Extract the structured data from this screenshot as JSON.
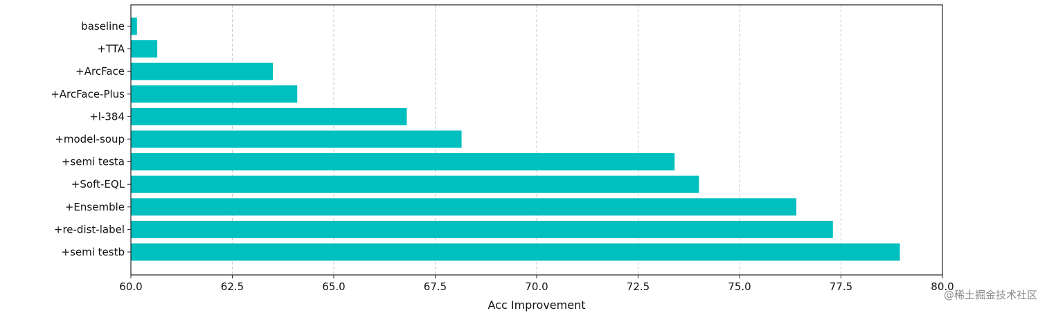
{
  "chart_data": {
    "type": "bar",
    "orientation": "horizontal",
    "title": "",
    "xlabel": "Acc Improvement",
    "ylabel": "",
    "xlim": [
      60.0,
      80.0
    ],
    "xticks": [
      "60.0",
      "62.5",
      "65.0",
      "67.5",
      "70.0",
      "72.5",
      "75.0",
      "77.5",
      "80.0"
    ],
    "xtick_values": [
      60.0,
      62.5,
      65.0,
      67.5,
      70.0,
      72.5,
      75.0,
      77.5,
      80.0
    ],
    "grid": "vertical-dashed",
    "bar_color": "#00bfbf",
    "categories": [
      "baseline",
      "+TTA",
      "+ArcFace",
      "+ArcFace-Plus",
      "+l-384",
      "+model-soup",
      "+semi testa",
      "+Soft-EQL",
      "+Ensemble",
      "+re-dist-label",
      "+semi testb"
    ],
    "values": [
      60.15,
      60.65,
      63.5,
      64.1,
      66.8,
      68.15,
      73.4,
      74.0,
      76.4,
      77.3,
      78.95
    ]
  },
  "watermark": "@稀土掘金技术社区"
}
